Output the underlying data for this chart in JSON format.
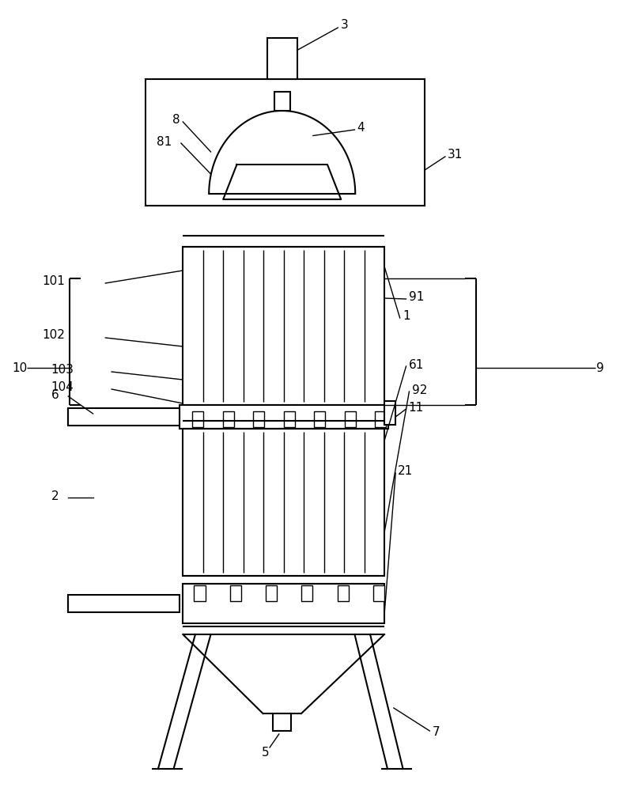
{
  "bg_color": "#ffffff",
  "line_color": "#000000",
  "line_width": 1.5,
  "fig_width": 7.84,
  "fig_height": 10.0
}
